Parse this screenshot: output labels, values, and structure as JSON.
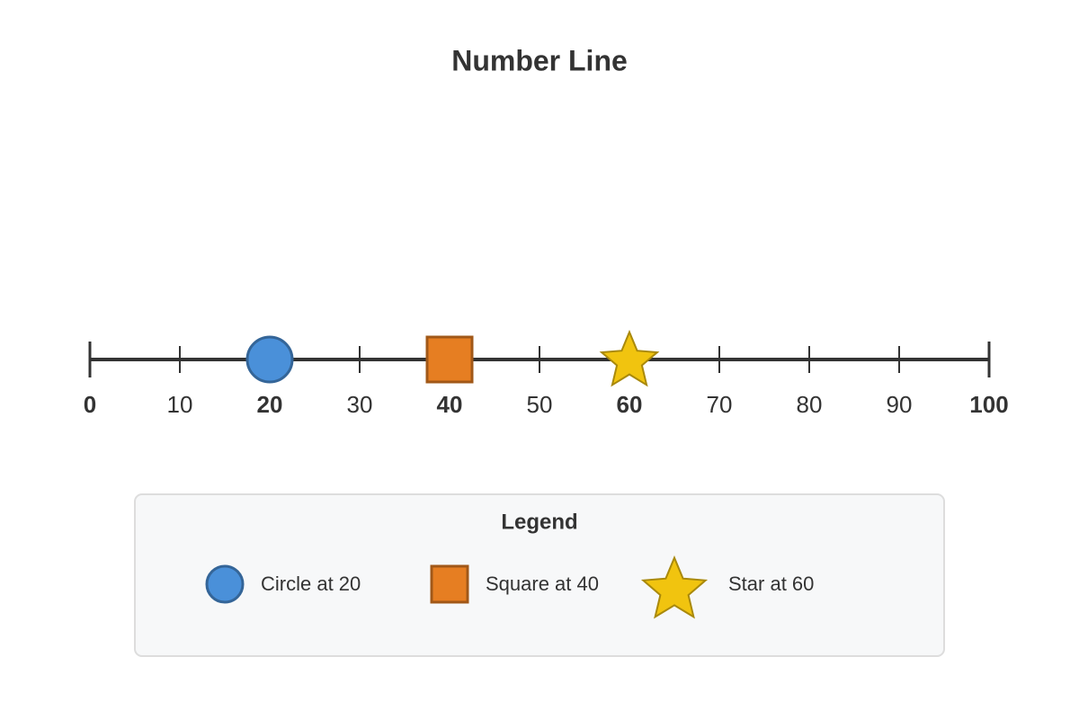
{
  "chart_data": {
    "type": "number_line",
    "title": "Number Line",
    "xlim": [
      0,
      100
    ],
    "xticks": [
      0,
      10,
      20,
      30,
      40,
      50,
      60,
      70,
      80,
      90,
      100
    ],
    "series": [
      {
        "name": "Circle at 20",
        "shape": "circle",
        "color": "#4a90d9",
        "value": 20
      },
      {
        "name": "Square at 40",
        "shape": "square",
        "color": "#e67e22",
        "value": 40
      },
      {
        "name": "Star at 60",
        "shape": "star",
        "color": "#f1c40f",
        "value": 60
      }
    ],
    "legend_title": "Legend"
  }
}
